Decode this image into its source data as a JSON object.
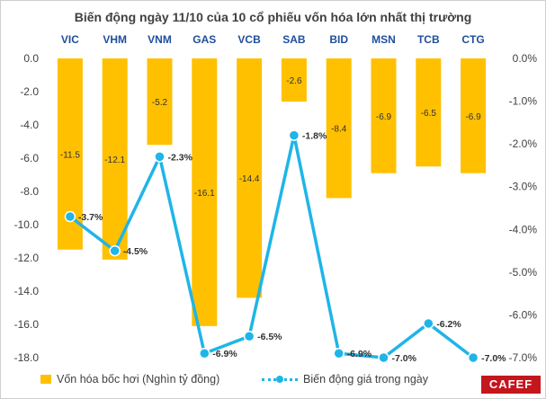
{
  "chart_data": {
    "type": "bar+line",
    "title": "Biến động ngày 11/10 của 10 cổ phiếu vốn hóa lớn nhất thị trường",
    "categories": [
      "VIC",
      "VHM",
      "VNM",
      "GAS",
      "VCB",
      "SAB",
      "BID",
      "MSN",
      "TCB",
      "CTG"
    ],
    "series": [
      {
        "name": "Vốn hóa bốc hơi (Nghìn tỷ đồng)",
        "type": "bar",
        "axis": "left",
        "values": [
          -11.5,
          -12.1,
          -5.2,
          -16.1,
          -14.4,
          -2.6,
          -8.4,
          -6.9,
          -6.5,
          -6.9
        ],
        "labels": [
          "-11.5",
          "-12.1",
          "-5.2",
          "-16.1",
          "-14.4",
          "-2.6",
          "-8.4",
          "-6.9",
          "-6.5",
          "-6.9"
        ]
      },
      {
        "name": "Biến động giá trong ngày",
        "type": "line",
        "axis": "right",
        "values": [
          -3.7,
          -4.5,
          -2.3,
          -6.9,
          -6.5,
          -1.8,
          -6.9,
          -7.0,
          -6.2,
          -7.0
        ],
        "labels": [
          "-3.7%",
          "-4.5%",
          "-2.3%",
          "-6.9%",
          "-6.5%",
          "-1.8%",
          "-6.9%",
          "-7.0%",
          "-6.2%",
          "-7.0%"
        ]
      }
    ],
    "y_left": {
      "ylim": [
        -18,
        0
      ],
      "ticks": [
        0,
        -2,
        -4,
        -6,
        -8,
        -10,
        -12,
        -14,
        -16,
        -18
      ],
      "tick_labels": [
        "0.0",
        "-2.0",
        "-4.0",
        "-6.0",
        "-8.0",
        "-10.0",
        "-12.0",
        "-14.0",
        "-16.0",
        "-18.0"
      ]
    },
    "y_right": {
      "ylim": [
        -7,
        0
      ],
      "ticks": [
        0,
        -1,
        -2,
        -3,
        -4,
        -5,
        -6,
        -7
      ],
      "tick_labels": [
        "0.0%",
        "-1.0%",
        "-2.0%",
        "-3.0%",
        "-4.0%",
        "-5.0%",
        "-6.0%",
        "-7.0%"
      ]
    },
    "x_axis_position": "top",
    "legend_position": "bottom",
    "grid": false,
    "colors": {
      "bar": "#ffc000",
      "line": "#1fb5e8",
      "category_label": "#1f4e9c",
      "text": "#404040"
    }
  },
  "logo": {
    "text": "CAFEF"
  }
}
